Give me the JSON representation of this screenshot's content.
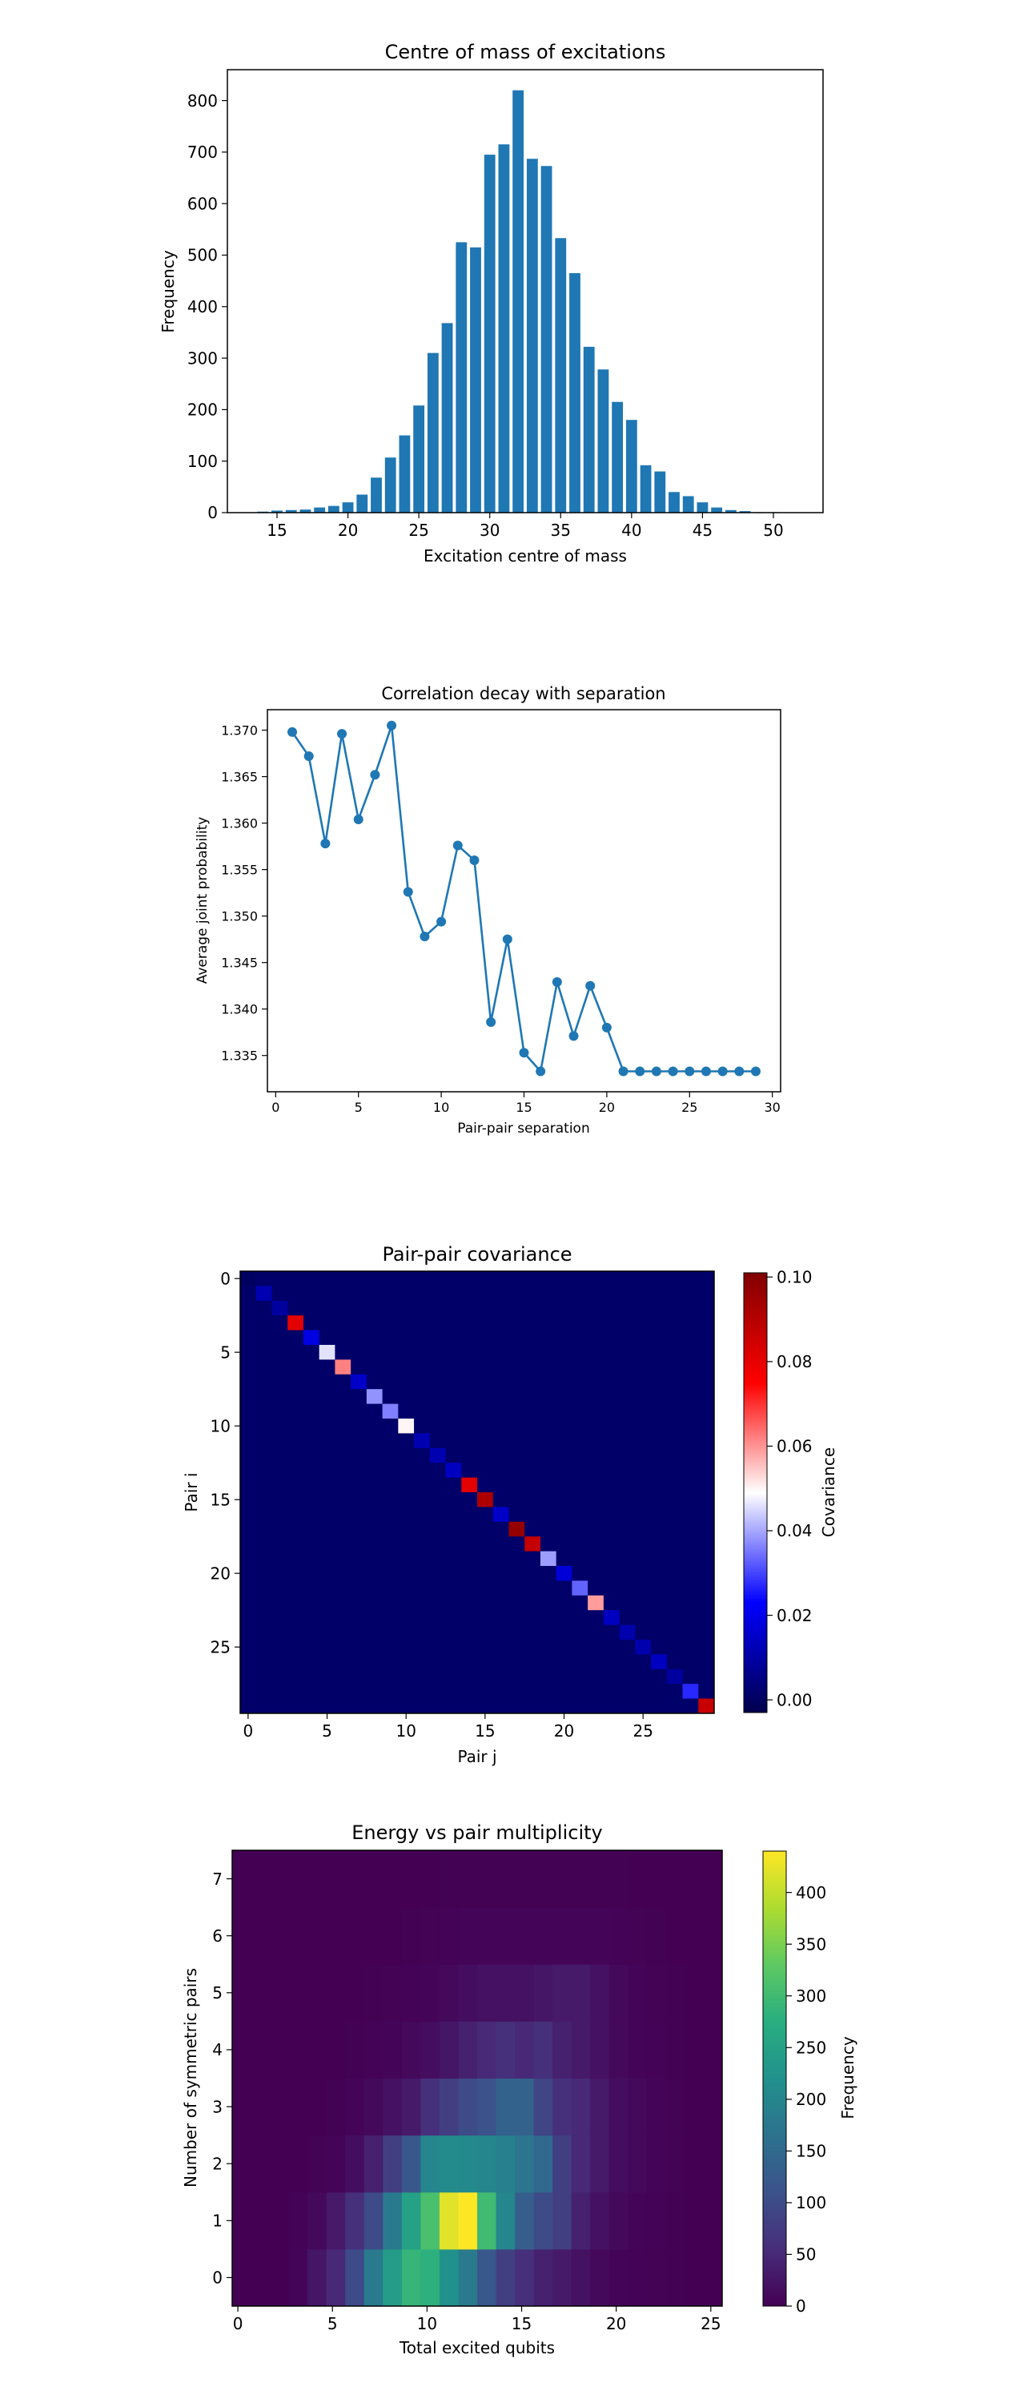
{
  "chart_data": [
    {
      "type": "bar",
      "title": "Centre of mass of excitations",
      "xlabel": "Excitation centre of mass",
      "ylabel": "Frequency",
      "xlim": [
        11.5,
        53.5
      ],
      "ylim": [
        0,
        860
      ],
      "xticks": [
        15,
        20,
        25,
        30,
        35,
        40,
        45,
        50
      ],
      "yticks": [
        0,
        100,
        200,
        300,
        400,
        500,
        600,
        700,
        800
      ],
      "bin_width": 0.78,
      "x": [
        14,
        15,
        16,
        17,
        18,
        19,
        20,
        21,
        22,
        23,
        24,
        25,
        26,
        27,
        28,
        29,
        30,
        31,
        32,
        33,
        34,
        35,
        36,
        37,
        38,
        39,
        40,
        41,
        42,
        43,
        44,
        45,
        46,
        47,
        48,
        49,
        50
      ],
      "values": [
        2,
        4,
        5,
        6,
        10,
        13,
        20,
        35,
        68,
        107,
        150,
        208,
        310,
        368,
        525,
        515,
        695,
        715,
        820,
        687,
        673,
        533,
        465,
        322,
        278,
        215,
        180,
        92,
        80,
        40,
        32,
        20,
        10,
        5,
        3,
        1,
        1
      ]
    },
    {
      "type": "line",
      "title": "Correlation decay with separation",
      "xlabel": "Pair-pair separation",
      "ylabel": "Average joint probability",
      "xlim": [
        -0.5,
        30.5
      ],
      "ylim": [
        1.3311,
        1.3722
      ],
      "xticks": [
        0,
        5,
        10,
        15,
        20,
        25,
        30
      ],
      "yticks": [
        "1.335",
        "1.340",
        "1.345",
        "1.350",
        "1.355",
        "1.360",
        "1.365",
        "1.370"
      ],
      "x": [
        1,
        2,
        3,
        4,
        5,
        6,
        7,
        8,
        9,
        10,
        11,
        12,
        13,
        14,
        15,
        16,
        17,
        18,
        19,
        20,
        21,
        22,
        23,
        24,
        25,
        26,
        27,
        28,
        29
      ],
      "y": [
        1.3698,
        1.3672,
        1.3578,
        1.3696,
        1.3604,
        1.3652,
        1.3705,
        1.3526,
        1.3478,
        1.3494,
        1.3576,
        1.356,
        1.3386,
        1.3475,
        1.3353,
        1.3333,
        1.3429,
        1.3371,
        1.3425,
        1.338,
        1.3333,
        1.3333,
        1.3333,
        1.3333,
        1.3333,
        1.3333,
        1.3333,
        1.3333,
        1.3333
      ]
    },
    {
      "type": "heatmap",
      "title": "Pair-pair covariance",
      "xlabel": "Pair j",
      "ylabel": "Pair i",
      "colorbar_label": "Covariance",
      "colormap": "seismic",
      "size": 30,
      "vmin": -0.003,
      "vmax": 0.101,
      "xticks": [
        0,
        5,
        10,
        15,
        20,
        25
      ],
      "yticks": [
        0,
        5,
        10,
        15,
        20,
        25
      ],
      "colorbar_ticks": [
        "0.00",
        "0.02",
        "0.04",
        "0.06",
        "0.08",
        "0.10"
      ],
      "diagonal": [
        0.0,
        0.012,
        0.009,
        0.081,
        0.019,
        0.046,
        0.062,
        0.015,
        0.038,
        0.036,
        0.05,
        0.012,
        0.012,
        0.014,
        0.081,
        0.092,
        0.015,
        0.097,
        0.087,
        0.039,
        0.017,
        0.033,
        0.059,
        0.014,
        0.011,
        0.011,
        0.014,
        0.009,
        0.027,
        0.086
      ],
      "off_diagonal": 0.001
    },
    {
      "type": "heatmap",
      "title": "Energy vs pair multiplicity",
      "xlabel": "Total excited qubits",
      "ylabel": "Number of symmetric pairs",
      "colorbar_label": "Frequency",
      "colormap": "viridis",
      "xlim": [
        -0.3,
        25.6
      ],
      "ylim": [
        -0.5,
        7.5
      ],
      "vmax": 440,
      "xticks": [
        0,
        5,
        10,
        15,
        20,
        25
      ],
      "yticks": [
        0,
        1,
        2,
        3,
        4,
        5,
        6,
        7
      ],
      "colorbar_ticks": [
        0,
        50,
        100,
        150,
        200,
        250,
        300,
        350,
        400
      ],
      "x_bin_width": 1.0,
      "rows": [
        [
          0,
          0,
          0,
          5,
          25,
          50,
          100,
          180,
          240,
          290,
          280,
          220,
          180,
          120,
          80,
          60,
          40,
          30,
          20,
          10,
          5,
          3,
          2,
          1,
          0,
          0
        ],
        [
          0,
          0,
          0,
          3,
          10,
          30,
          60,
          100,
          180,
          250,
          310,
          420,
          440,
          300,
          200,
          130,
          100,
          80,
          40,
          20,
          10,
          5,
          3,
          1,
          0,
          0
        ],
        [
          0,
          0,
          0,
          0,
          2,
          5,
          15,
          40,
          80,
          120,
          200,
          210,
          205,
          200,
          190,
          170,
          150,
          80,
          50,
          30,
          15,
          10,
          5,
          2,
          0,
          0
        ],
        [
          0,
          0,
          0,
          0,
          0,
          1,
          5,
          10,
          20,
          30,
          60,
          80,
          100,
          110,
          140,
          140,
          90,
          60,
          50,
          30,
          15,
          10,
          5,
          2,
          0,
          0
        ],
        [
          0,
          0,
          0,
          0,
          0,
          0,
          1,
          3,
          5,
          10,
          15,
          25,
          40,
          50,
          60,
          50,
          60,
          40,
          30,
          20,
          10,
          5,
          3,
          1,
          0,
          0
        ],
        [
          0,
          0,
          0,
          0,
          0,
          0,
          0,
          1,
          2,
          3,
          5,
          10,
          15,
          20,
          20,
          20,
          25,
          30,
          30,
          20,
          10,
          5,
          2,
          1,
          0,
          0
        ],
        [
          0,
          0,
          0,
          0,
          0,
          0,
          0,
          0,
          0,
          1,
          2,
          3,
          4,
          5,
          5,
          5,
          5,
          5,
          5,
          5,
          3,
          2,
          1,
          0,
          0,
          0
        ],
        [
          0,
          0,
          0,
          0,
          0,
          0,
          0,
          0,
          0,
          0,
          0,
          1,
          1,
          1,
          1,
          1,
          1,
          1,
          1,
          1,
          1,
          0,
          0,
          0,
          0,
          0
        ]
      ]
    }
  ]
}
